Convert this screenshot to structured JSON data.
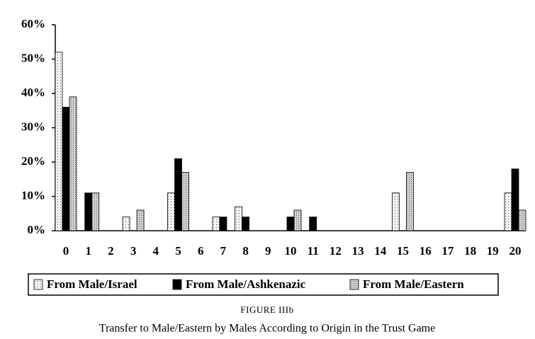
{
  "chart_data": {
    "type": "bar",
    "caption_label": "FIGURE IIIb",
    "caption": "Transfer to Male/Eastern by Males According to Origin in the Trust Game",
    "categories": [
      "0",
      "1",
      "2",
      "3",
      "4",
      "5",
      "6",
      "7",
      "8",
      "9",
      "10",
      "11",
      "12",
      "13",
      "14",
      "15",
      "16",
      "17",
      "18",
      "19",
      "20"
    ],
    "series": [
      {
        "name": "From Male/Israel",
        "color": "#f2f2f2",
        "values": [
          52,
          0,
          0,
          4,
          0,
          11,
          0,
          4,
          7,
          0,
          0,
          0,
          0,
          0,
          0,
          11,
          0,
          0,
          0,
          0,
          11
        ]
      },
      {
        "name": "From Male/Ashkenazic",
        "color": "#000000",
        "values": [
          36,
          11,
          0,
          0,
          0,
          21,
          0,
          4,
          4,
          0,
          4,
          4,
          0,
          0,
          0,
          0,
          0,
          0,
          0,
          0,
          18
        ]
      },
      {
        "name": "From Male/Eastern",
        "color": "#d0d0d0",
        "values": [
          39,
          11,
          0,
          6,
          0,
          17,
          0,
          0,
          0,
          0,
          6,
          0,
          0,
          0,
          0,
          17,
          0,
          0,
          0,
          0,
          6
        ]
      }
    ],
    "ylim": [
      0,
      60
    ],
    "yticks": [
      {
        "value": 0,
        "label": "0%"
      },
      {
        "value": 10,
        "label": "10%"
      },
      {
        "value": 20,
        "label": "20%"
      },
      {
        "value": 30,
        "label": "30%"
      },
      {
        "value": 40,
        "label": "40%"
      },
      {
        "value": 50,
        "label": "50%"
      },
      {
        "value": 60,
        "label": "60%"
      }
    ],
    "legend": "bottom"
  }
}
